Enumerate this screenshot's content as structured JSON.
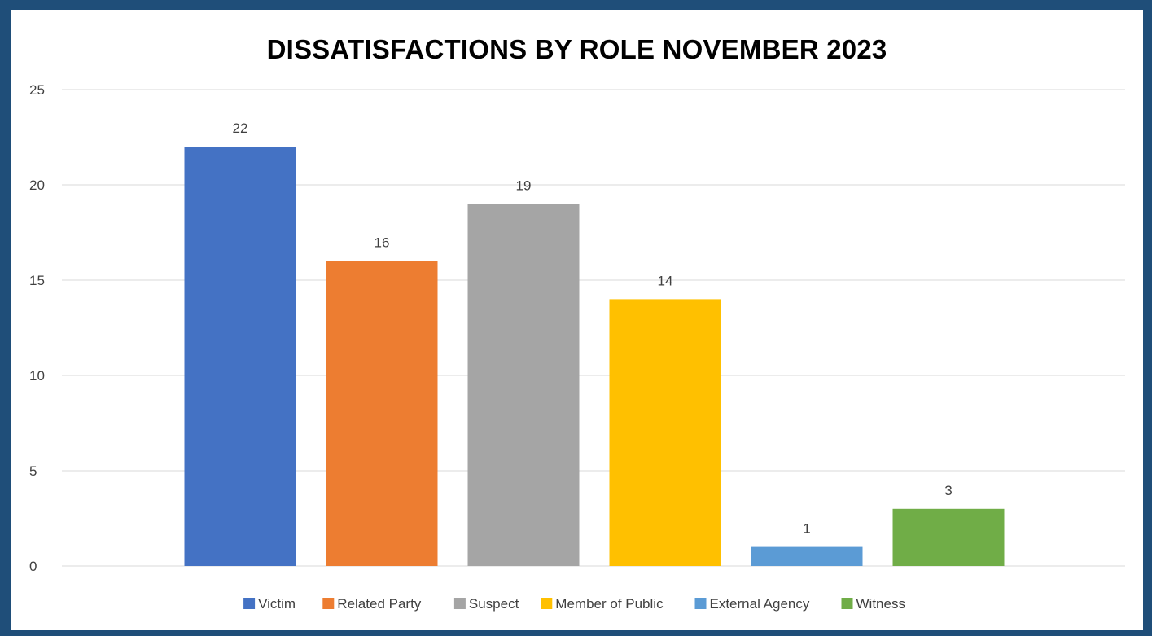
{
  "chart_data": {
    "type": "bar",
    "title": "DISSATISFACTIONS BY ROLE NOVEMBER 2023",
    "xlabel": "",
    "ylabel": "",
    "ylim": [
      0,
      25
    ],
    "yticks": [
      0,
      5,
      10,
      15,
      20,
      25
    ],
    "grid": true,
    "legend_position": "bottom",
    "data_labels": true,
    "series": [
      {
        "name": "Victim",
        "value": 22,
        "color": "#4472c4"
      },
      {
        "name": "Related Party",
        "value": 16,
        "color": "#ed7d31"
      },
      {
        "name": "Suspect",
        "value": 19,
        "color": "#a5a5a5"
      },
      {
        "name": "Member of Public",
        "value": 14,
        "color": "#ffc000"
      },
      {
        "name": "External Agency",
        "value": 1,
        "color": "#5b9bd5"
      },
      {
        "name": "Witness",
        "value": 3,
        "color": "#70ad47"
      }
    ]
  },
  "colors": {
    "page_background": "#1f4e79",
    "panel_background": "#ffffff",
    "gridline": "#d9d9d9",
    "label_text": "#404040"
  }
}
